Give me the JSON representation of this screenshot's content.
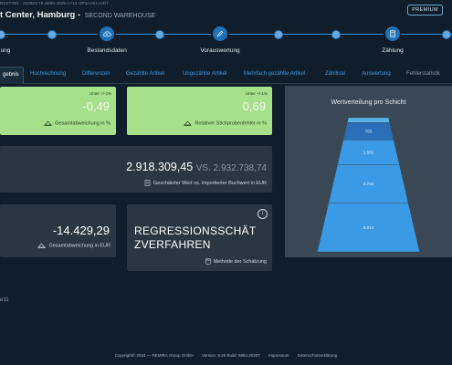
{
  "header": {
    "breadcrumb": "RKETING · 2020DC79-2E90-4029-A713-OP3AAE1A4D7",
    "title": "t Center, Hamburg -",
    "subtitle": "SECOND WAREHOUSE",
    "premium_label": "PREMIUM"
  },
  "wizard": {
    "steps": [
      {
        "label": "ung",
        "icon": "step-dot"
      },
      {
        "label": "Bestandsdaten",
        "icon": "cloud-upload-icon"
      },
      {
        "label": "Vorauswertung",
        "icon": "pencil-icon"
      },
      {
        "label": "Zählung",
        "icon": "calculator-icon"
      }
    ]
  },
  "tabs": [
    {
      "label": "gebnis",
      "active": true
    },
    {
      "label": "Hochrechnung"
    },
    {
      "label": "Differenzen"
    },
    {
      "label": "Gezählte Artikel"
    },
    {
      "label": "Ungezählte Artikel"
    },
    {
      "label": "Mehrfach gezählte Artikel"
    },
    {
      "label": "Zählliste"
    },
    {
      "label": "Auswertung"
    },
    {
      "label": "Fehlerstatistik"
    }
  ],
  "cards": {
    "deviation_pct": {
      "value": "-0,49",
      "threshold": "Unter +/-2%",
      "label": "Gesamtabweichung in %"
    },
    "sample_error": {
      "value": "0,69",
      "threshold": "Unter +/-1%",
      "label": "Relativer Stichprobenfehler in %"
    },
    "estimated_value": {
      "value": "2.918.309,45",
      "vs": "VS. 2.932.738,74",
      "label": "Geschätzter Wert vs. importierter Buchwert in EUR"
    },
    "deviation_eur": {
      "value": "-14.429,29",
      "label": "Gesamtabweichung in EUR"
    },
    "method": {
      "value": "REGRESSIONSSCHÄTZVERFAHREN",
      "label": "Methode der Schätzung"
    }
  },
  "chart_data": {
    "type": "funnel",
    "title": "Wertverteilung pro Schicht",
    "layers": [
      {
        "value": 59,
        "label": ""
      },
      {
        "value": 763,
        "label": "763"
      },
      {
        "value": 1561,
        "label": "1.561"
      },
      {
        "value": 3734,
        "label": "3.734"
      },
      {
        "value": 6014,
        "label": "6.014"
      }
    ],
    "colors": {
      "light": "#5ab4ec",
      "main": "#3b9ae6",
      "dark": "#2a6fb8"
    }
  },
  "pagination": {
    "text": "d 11"
  },
  "footer": {
    "copyright": "Copyright© 2024 — REMIRA Group GmbH",
    "version": "Version: 9.25 Build: 8864.30207",
    "imprint": "Impressum",
    "privacy": "Datenschutzerklärung"
  },
  "colors": {
    "green": "#a6e08a",
    "card_dark": "#2a3742",
    "accent": "#3b9ae6"
  }
}
